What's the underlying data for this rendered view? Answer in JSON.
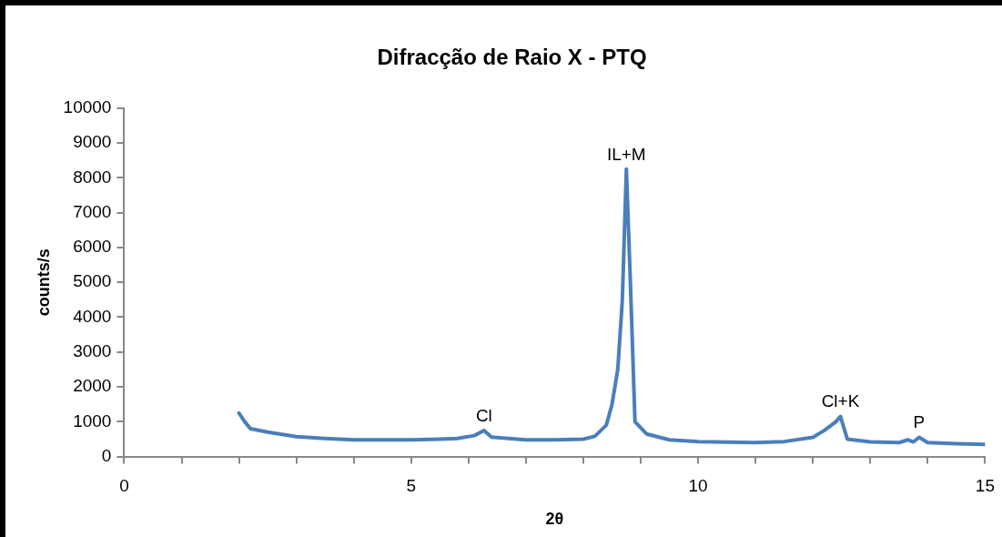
{
  "chart_data": {
    "type": "line",
    "title": "Difracção de Raio X - PTQ",
    "xlabel": "2θ",
    "ylabel": "counts/s",
    "x": [
      2.0,
      2.1,
      2.2,
      2.5,
      3,
      3.5,
      4,
      5,
      5.5,
      5.8,
      6.1,
      6.27,
      6.4,
      7,
      7.5,
      8,
      8.2,
      8.4,
      8.5,
      8.6,
      8.68,
      8.75,
      8.82,
      8.9,
      9.1,
      9.5,
      10,
      11,
      11.5,
      12,
      12.2,
      12.4,
      12.48,
      12.6,
      13,
      13.5,
      13.65,
      13.75,
      13.85,
      14,
      14.5,
      15
    ],
    "series": [
      {
        "color": "#4a7ebb",
        "values": [
          1250,
          1000,
          800,
          700,
          570,
          520,
          480,
          480,
          500,
          520,
          600,
          750,
          560,
          480,
          480,
          500,
          580,
          900,
          1500,
          2500,
          4500,
          8250,
          5000,
          1000,
          650,
          480,
          430,
          400,
          430,
          550,
          750,
          1000,
          1150,
          500,
          420,
          400,
          480,
          420,
          550,
          400,
          370,
          350
        ]
      }
    ],
    "xlim": [
      0,
      15
    ],
    "xticks": [
      0,
      {
        "value": 1,
        "label": null
      },
      {
        "value": 2,
        "label": null
      },
      {
        "value": 3,
        "label": null
      },
      {
        "value": 4,
        "label": null
      },
      5,
      {
        "value": 6,
        "label": null
      },
      {
        "value": 7,
        "label": null
      },
      {
        "value": 8,
        "label": null
      },
      {
        "value": 9,
        "label": null
      },
      10,
      {
        "value": 11,
        "label": null
      },
      {
        "value": 12,
        "label": null
      },
      {
        "value": 13,
        "label": null
      },
      {
        "value": 14,
        "label": null
      },
      15
    ],
    "ylim": [
      0,
      10000
    ],
    "yticks": [
      0,
      1000,
      2000,
      3000,
      4000,
      5000,
      6000,
      7000,
      8000,
      9000,
      10000
    ],
    "annotations": [
      {
        "text": "Cl",
        "x": 6.27,
        "y": 750
      },
      {
        "text": "IL+M",
        "x": 8.75,
        "y": 8250
      },
      {
        "text": "Cl+K",
        "x": 12.48,
        "y": 1150
      },
      {
        "text": "P",
        "x": 13.85,
        "y": 550
      }
    ],
    "grid": false,
    "legend": false,
    "marker": "none",
    "line_style": "solid"
  }
}
